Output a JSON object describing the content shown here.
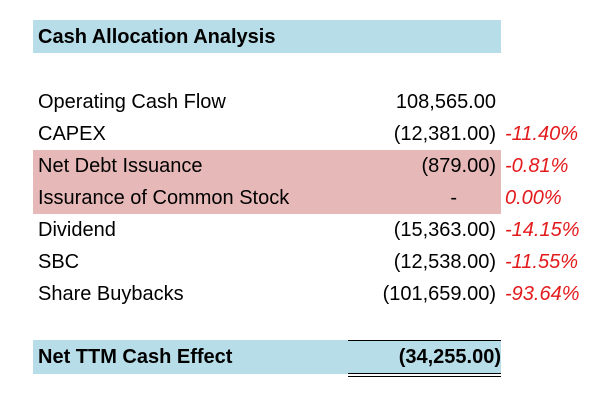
{
  "title": "Cash Allocation Analysis",
  "rows": [
    {
      "label": "Operating Cash Flow",
      "value": "108,565.00",
      "pct": ""
    },
    {
      "label": "CAPEX",
      "value": "(12,381.00)",
      "pct": "-11.40%"
    },
    {
      "label": "Net Debt Issuance",
      "value": "(879.00)",
      "pct": "-0.81%"
    },
    {
      "label": "Issurance of Common Stock",
      "value": "-",
      "pct": "0.00%"
    },
    {
      "label": "Dividend",
      "value": "(15,363.00)",
      "pct": "-14.15%"
    },
    {
      "label": "SBC",
      "value": "(12,538.00)",
      "pct": "-11.55%"
    },
    {
      "label": "Share Buybacks",
      "value": "(101,659.00)",
      "pct": "-93.64%"
    }
  ],
  "total": {
    "label": "Net TTM Cash Effect",
    "value": "(34,255.00)"
  },
  "colors": {
    "header_band": "#b7dde8",
    "highlight_band": "#e6b8b7",
    "negative_pct": "#e31a1c"
  }
}
